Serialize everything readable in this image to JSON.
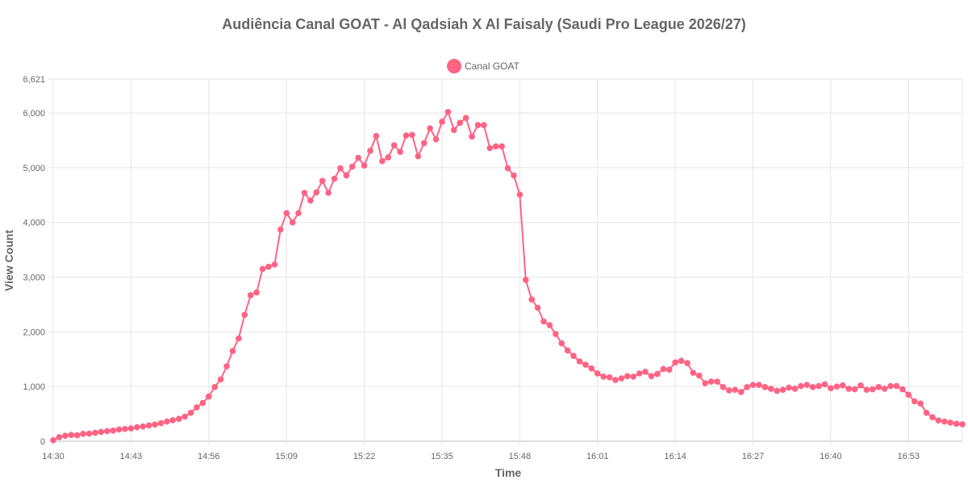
{
  "chart_data": {
    "type": "line",
    "title": "Audiência Canal GOAT - Al Qadsiah X Al Faisaly (Saudi Pro League 2026/27)",
    "xlabel": "Time",
    "ylabel": "View Count",
    "legend_position": "top",
    "grid": true,
    "x_start": "14:30",
    "x_end": "17:02",
    "x_step_minutes": 1,
    "x_ticks": [
      "14:30",
      "14:43",
      "14:56",
      "15:09",
      "15:22",
      "15:35",
      "15:48",
      "16:01",
      "16:14",
      "16:27",
      "16:40",
      "16:53"
    ],
    "ylim": [
      0,
      6621
    ],
    "y_ticks": [
      0,
      1000,
      2000,
      3000,
      4000,
      5000,
      6000,
      6621
    ],
    "series": [
      {
        "name": "Canal GOAT",
        "color": "#ff6384",
        "values": [
          20,
          75,
          100,
          115,
          110,
          135,
          140,
          155,
          170,
          185,
          195,
          215,
          225,
          235,
          255,
          270,
          290,
          305,
          330,
          360,
          385,
          410,
          450,
          520,
          620,
          700,
          820,
          990,
          1130,
          1370,
          1650,
          1880,
          2310,
          2670,
          2720,
          3150,
          3190,
          3230,
          3870,
          4170,
          4000,
          4170,
          4540,
          4400,
          4550,
          4760,
          4540,
          4800,
          4990,
          4860,
          5020,
          5180,
          5040,
          5310,
          5580,
          5120,
          5190,
          5410,
          5290,
          5590,
          5600,
          5210,
          5450,
          5720,
          5520,
          5840,
          6020,
          5690,
          5820,
          5910,
          5570,
          5780,
          5780,
          5360,
          5390,
          5390,
          4990,
          4860,
          4510,
          2950,
          2590,
          2440,
          2190,
          2120,
          1960,
          1790,
          1660,
          1560,
          1460,
          1400,
          1330,
          1240,
          1180,
          1170,
          1120,
          1150,
          1190,
          1180,
          1240,
          1270,
          1190,
          1230,
          1320,
          1310,
          1440,
          1470,
          1430,
          1250,
          1200,
          1060,
          1090,
          1090,
          990,
          930,
          940,
          900,
          990,
          1030,
          1030,
          990,
          960,
          920,
          940,
          980,
          960,
          1010,
          1030,
          990,
          1010,
          1040,
          970,
          1000,
          1020,
          960,
          950,
          1020,
          940,
          950,
          990,
          960,
          1010,
          1010,
          950,
          850,
          730,
          690,
          520,
          440,
          380,
          360,
          340,
          320,
          310
        ]
      }
    ]
  }
}
